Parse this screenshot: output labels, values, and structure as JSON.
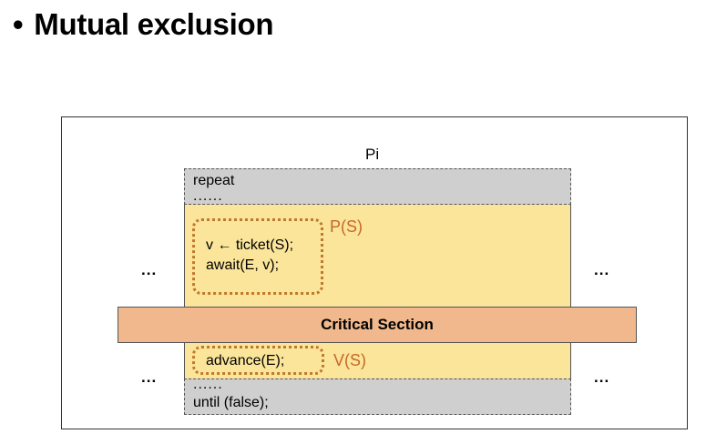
{
  "title": {
    "bullet": "•",
    "text": "Mutual exclusion"
  },
  "diagram": {
    "process_label": "Pi",
    "top_block": {
      "line1": "repeat",
      "line2": "......"
    },
    "entry_code": {
      "line1": "v ← ticket(S);",
      "line2": "await(E, v);"
    },
    "entry_label": "P(S)",
    "critical_section": "Critical Section",
    "exit_code": "advance(E);",
    "exit_label": "V(S)",
    "bottom_block": {
      "line1": "......",
      "line2": "until (false);"
    },
    "side_ellipsis": "..."
  }
}
